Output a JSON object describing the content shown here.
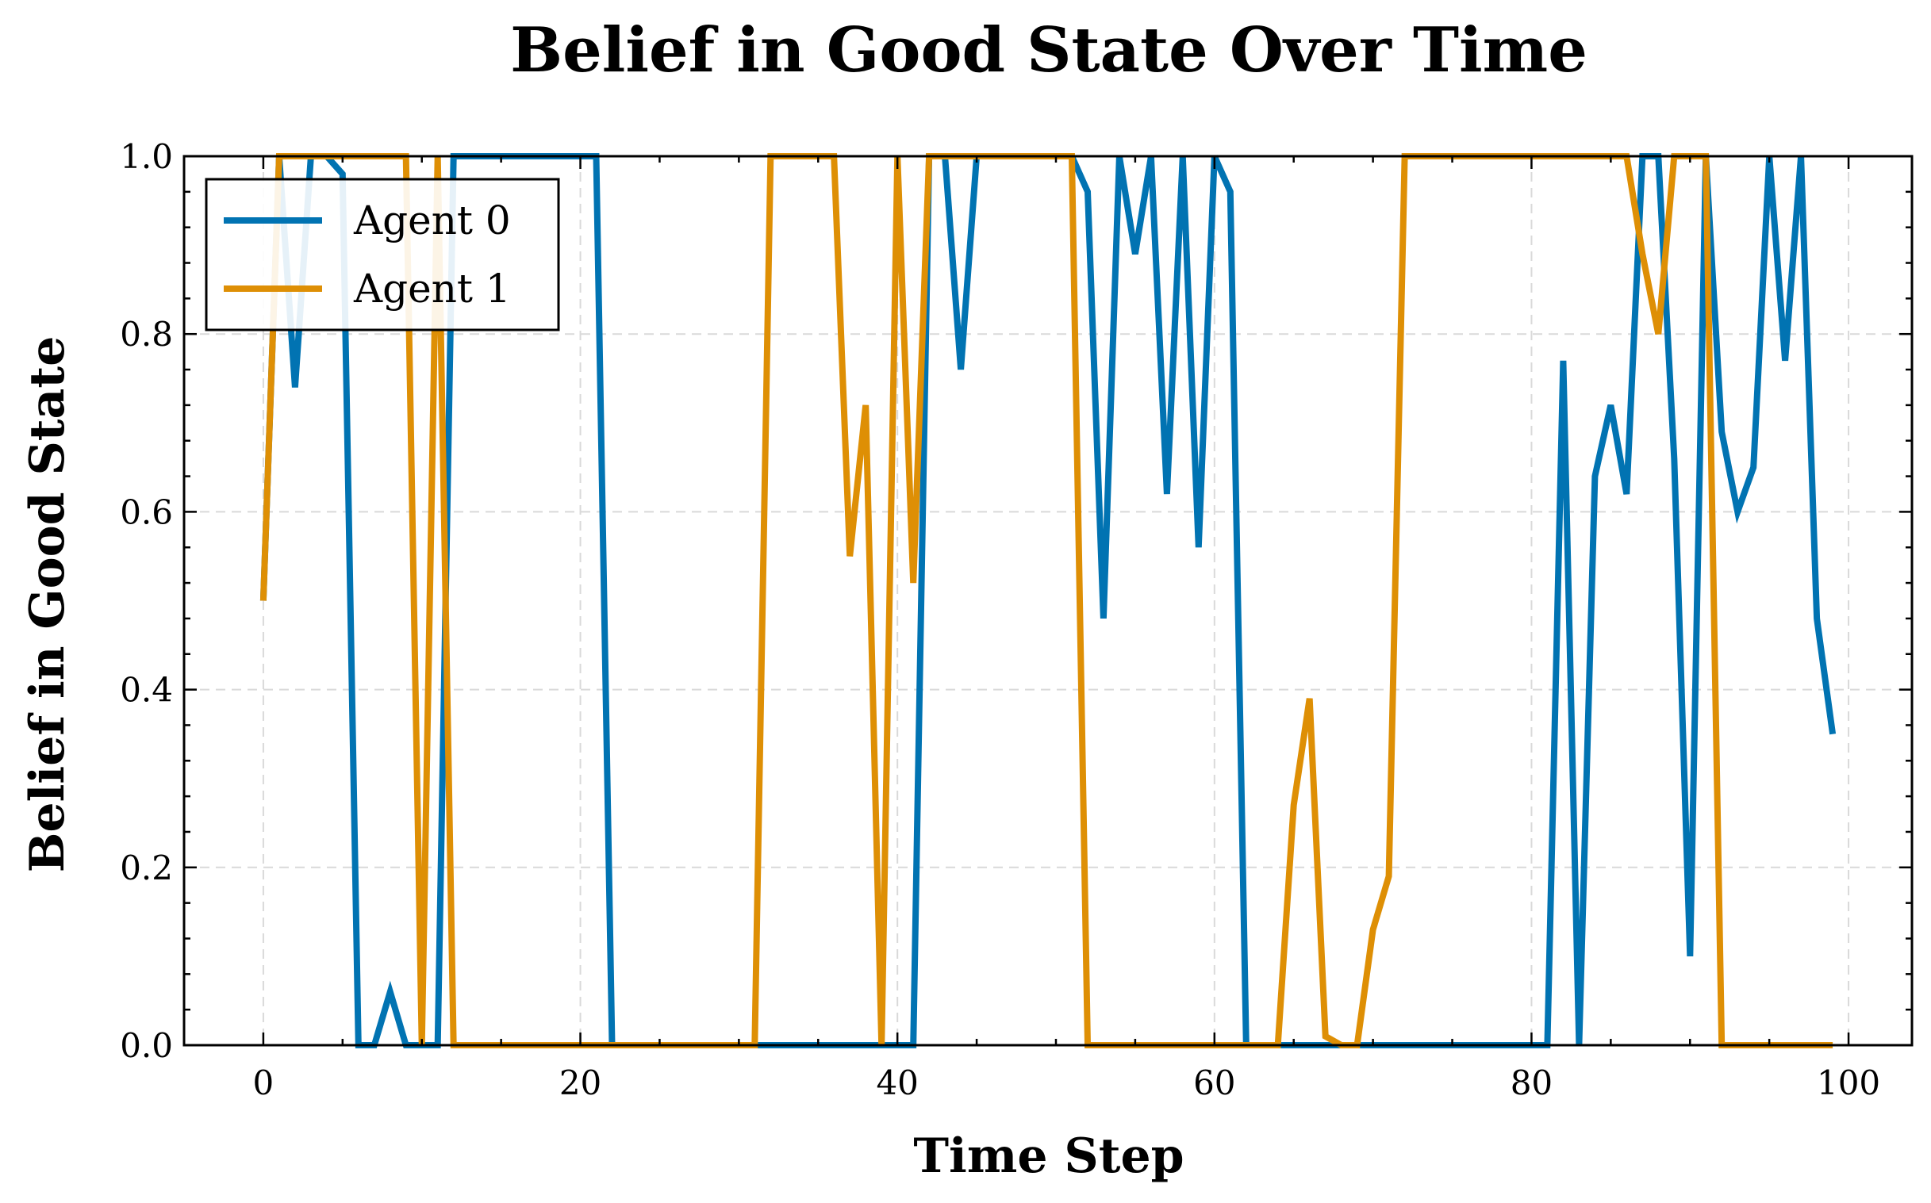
{
  "chart_data": {
    "type": "line",
    "title": "Belief in Good State Over Time",
    "xlabel": "Time Step",
    "ylabel": "Belief in Good State",
    "xlim": [
      -5,
      104
    ],
    "ylim": [
      0.0,
      1.0
    ],
    "xticks": [
      0,
      20,
      40,
      60,
      80,
      100
    ],
    "xtick_labels": [
      "0",
      "20",
      "40",
      "60",
      "80",
      "100"
    ],
    "yticks": [
      0.0,
      0.2,
      0.4,
      0.6,
      0.8,
      1.0
    ],
    "ytick_labels": [
      "0.0",
      "0.2",
      "0.4",
      "0.6",
      "0.8",
      "1.0"
    ],
    "grid": true,
    "legend_position": "top-left",
    "series": [
      {
        "name": "Agent 0",
        "color": "#0173b2",
        "x": [
          0,
          1,
          2,
          3,
          4,
          5,
          6,
          7,
          8,
          9,
          10,
          11,
          12,
          13,
          14,
          15,
          16,
          17,
          18,
          19,
          20,
          21,
          22,
          23,
          24,
          25,
          26,
          27,
          28,
          29,
          30,
          31,
          32,
          33,
          34,
          35,
          36,
          37,
          38,
          39,
          40,
          41,
          42,
          43,
          44,
          45,
          46,
          47,
          48,
          49,
          50,
          51,
          52,
          53,
          54,
          55,
          56,
          57,
          58,
          59,
          60,
          61,
          62,
          63,
          64,
          65,
          66,
          67,
          68,
          69,
          70,
          71,
          72,
          73,
          74,
          75,
          76,
          77,
          78,
          79,
          80,
          81,
          82,
          83,
          84,
          85,
          86,
          87,
          88,
          89,
          90,
          91,
          92,
          93,
          94,
          95,
          96,
          97,
          98,
          99
        ],
        "values": [
          0.5,
          1.0,
          0.74,
          1.0,
          1.0,
          0.98,
          0.0,
          0.0,
          0.06,
          0.0,
          0.0,
          0.0,
          1.0,
          1.0,
          1.0,
          1.0,
          1.0,
          1.0,
          1.0,
          1.0,
          1.0,
          1.0,
          0.0,
          0.0,
          0.0,
          0.0,
          0.0,
          0.0,
          0.0,
          0.0,
          0.0,
          0.0,
          0.0,
          0.0,
          0.0,
          0.0,
          0.0,
          0.0,
          0.0,
          0.0,
          0.0,
          0.0,
          1.0,
          1.0,
          0.76,
          1.0,
          1.0,
          1.0,
          1.0,
          1.0,
          1.0,
          1.0,
          0.96,
          0.48,
          1.0,
          0.89,
          1.0,
          0.62,
          1.0,
          0.56,
          1.0,
          0.96,
          0.0,
          0.0,
          0.0,
          0.0,
          0.0,
          0.0,
          0.0,
          0.0,
          0.0,
          0.0,
          0.0,
          0.0,
          0.0,
          0.0,
          0.0,
          0.0,
          0.0,
          0.0,
          0.0,
          0.0,
          0.77,
          0.0,
          0.64,
          0.72,
          0.62,
          1.0,
          1.0,
          0.66,
          0.1,
          1.0,
          0.69,
          0.6,
          0.65,
          1.0,
          0.77,
          1.0,
          0.48,
          0.35
        ]
      },
      {
        "name": "Agent 1",
        "color": "#de8f05",
        "x": [
          0,
          1,
          2,
          3,
          4,
          5,
          6,
          7,
          8,
          9,
          10,
          11,
          12,
          13,
          14,
          15,
          16,
          17,
          18,
          19,
          20,
          21,
          22,
          23,
          24,
          25,
          26,
          27,
          28,
          29,
          30,
          31,
          32,
          33,
          34,
          35,
          36,
          37,
          38,
          39,
          40,
          41,
          42,
          43,
          44,
          45,
          46,
          47,
          48,
          49,
          50,
          51,
          52,
          53,
          54,
          55,
          56,
          57,
          58,
          59,
          60,
          61,
          62,
          63,
          64,
          65,
          66,
          67,
          68,
          69,
          70,
          71,
          72,
          73,
          74,
          75,
          76,
          77,
          78,
          79,
          80,
          81,
          82,
          83,
          84,
          85,
          86,
          87,
          88,
          89,
          90,
          91,
          92,
          93,
          94,
          95,
          96,
          97,
          98,
          99
        ],
        "values": [
          0.5,
          1.0,
          1.0,
          1.0,
          1.0,
          1.0,
          1.0,
          1.0,
          1.0,
          1.0,
          0.0,
          1.0,
          0.0,
          0.0,
          0.0,
          0.0,
          0.0,
          0.0,
          0.0,
          0.0,
          0.0,
          0.0,
          0.0,
          0.0,
          0.0,
          0.0,
          0.0,
          0.0,
          0.0,
          0.0,
          0.0,
          0.0,
          1.0,
          1.0,
          1.0,
          1.0,
          1.0,
          0.55,
          0.72,
          0.0,
          1.0,
          0.52,
          1.0,
          1.0,
          1.0,
          1.0,
          1.0,
          1.0,
          1.0,
          1.0,
          1.0,
          1.0,
          0.0,
          0.0,
          0.0,
          0.0,
          0.0,
          0.0,
          0.0,
          0.0,
          0.0,
          0.0,
          0.0,
          0.0,
          0.0,
          0.27,
          0.39,
          0.01,
          0.0,
          0.0,
          0.13,
          0.19,
          1.0,
          1.0,
          1.0,
          1.0,
          1.0,
          1.0,
          1.0,
          1.0,
          1.0,
          1.0,
          1.0,
          1.0,
          1.0,
          1.0,
          1.0,
          0.89,
          0.8,
          1.0,
          1.0,
          1.0,
          0.0,
          0.0,
          0.0,
          0.0,
          0.0,
          0.0,
          0.0,
          0.0
        ]
      }
    ]
  }
}
